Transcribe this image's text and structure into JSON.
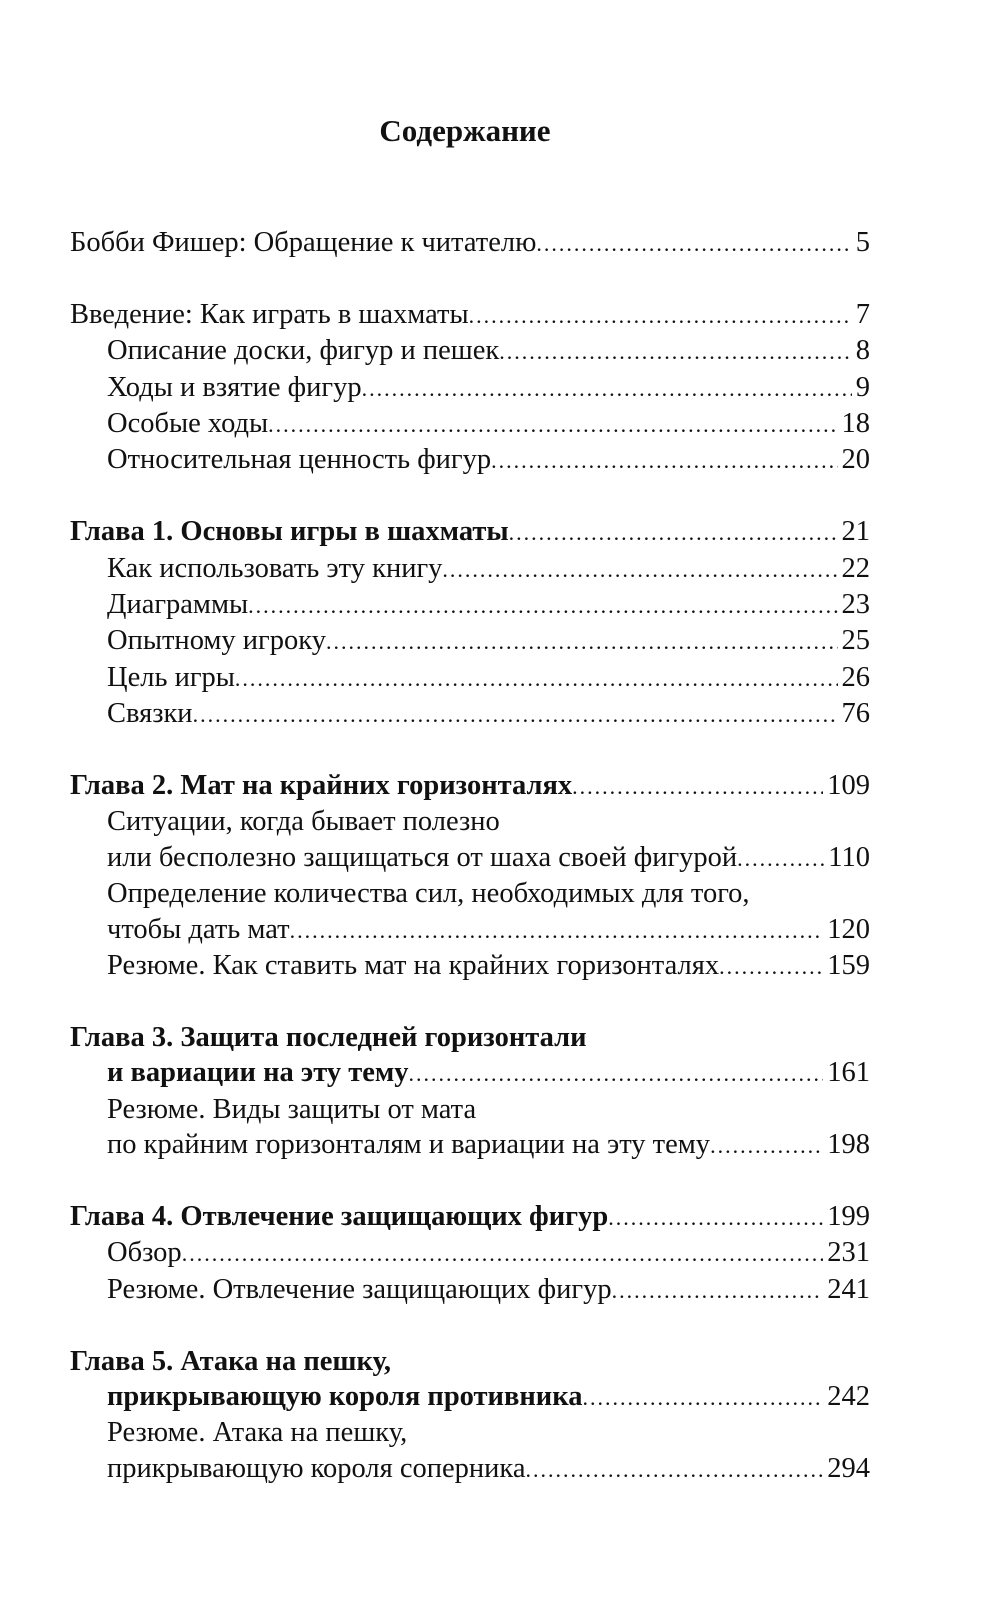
{
  "title": "Содержание",
  "groups": [
    {
      "entries": [
        {
          "text": "Бобби Фишер: Обращение к читателю",
          "page": "5",
          "bold": false,
          "sub": false
        }
      ]
    },
    {
      "entries": [
        {
          "text": "Введение: Как играть в шахматы",
          "page": "7",
          "bold": false,
          "sub": false
        },
        {
          "text": "Описание доски, фигур и пешек",
          "page": "8",
          "bold": false,
          "sub": true
        },
        {
          "text": "Ходы и взятие фигур",
          "page": "9",
          "bold": false,
          "sub": true
        },
        {
          "text": "Особые ходы",
          "page": "18",
          "bold": false,
          "sub": true
        },
        {
          "text": "Относительная ценность фигур",
          "page": "20",
          "bold": false,
          "sub": true
        }
      ]
    },
    {
      "entries": [
        {
          "text": "Глава 1. Основы игры в шахматы",
          "page": "21",
          "bold": true,
          "sub": false
        },
        {
          "text": "Как использовать эту книгу",
          "page": "22",
          "bold": false,
          "sub": true
        },
        {
          "text": "Диаграммы",
          "page": "23",
          "bold": false,
          "sub": true
        },
        {
          "text": "Опытному игроку",
          "page": "25",
          "bold": false,
          "sub": true
        },
        {
          "text": "Цель игры",
          "page": "26",
          "bold": false,
          "sub": true
        },
        {
          "text": "Связки",
          "page": "76",
          "bold": false,
          "sub": true
        }
      ]
    },
    {
      "entries": [
        {
          "text": "Глава 2. Мат на крайних горизонталях",
          "page": "109",
          "bold": true,
          "sub": false
        },
        {
          "pre": "Ситуации, когда бывает полезно",
          "text": "или бесполезно защищаться от шаха своей фигурой",
          "page": "110",
          "bold": false,
          "sub": true
        },
        {
          "pre": "Определение количества сил, необходимых для того,",
          "text": "чтобы дать мат",
          "page": "120",
          "bold": false,
          "sub": true
        },
        {
          "text": "Резюме. Как ставить мат на крайних горизонталях",
          "page": "159",
          "bold": false,
          "sub": true
        }
      ]
    },
    {
      "entries": [
        {
          "pre": "Глава 3. Защита последней горизонтали",
          "text": "и вариации на эту тему",
          "page": "161",
          "bold": true,
          "sub": false,
          "pre_sub": false
        },
        {
          "pre": "Резюме. Виды защиты от мата",
          "text": "по крайним горизонталям и вариации на эту тему",
          "page": "198",
          "bold": false,
          "sub": true
        }
      ]
    },
    {
      "entries": [
        {
          "text": "Глава 4. Отвлечение защищающих фигур",
          "page": "199",
          "bold": true,
          "sub": false
        },
        {
          "text": "Обзор",
          "page": "231",
          "bold": false,
          "sub": true
        },
        {
          "text": "Резюме. Отвлечение защищающих фигур",
          "page": "241",
          "bold": false,
          "sub": true
        }
      ]
    },
    {
      "entries": [
        {
          "pre": "Глава 5. Атака на пешку,",
          "text": "прикрывающую короля противника",
          "page": "242",
          "bold": true,
          "sub": false,
          "pre_sub": false
        },
        {
          "pre": "Резюме. Атака на пешку,",
          "text": "прикрывающую короля соперника",
          "page": "294",
          "bold": false,
          "sub": true
        }
      ]
    }
  ]
}
